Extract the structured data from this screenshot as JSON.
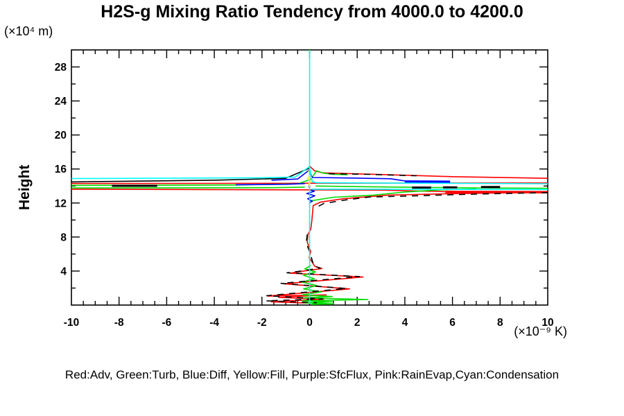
{
  "title": "H2S-g Mixing Ratio Tendency from 4000.0 to 4200.0",
  "y_axis_unit": "(×10⁴ m)",
  "y_axis_label": "Height",
  "x_axis_unit": "(×10⁻⁹ K)",
  "legend_text": "Red:Adv, Green:Turb, Blue:Diff, Yellow:Fill, Purple:SfcFlux, Pink:RainEvap,Cyan:Condensation",
  "chart_data": {
    "type": "line",
    "title": "H2S-g Mixing Ratio Tendency from 4000.0 to 4200.0",
    "ylabel": "Height",
    "y_unit": "(×10⁴ m)",
    "x_unit": "(×10⁻⁹ K)",
    "xlim": [
      -10,
      10
    ],
    "ylim": [
      0,
      30
    ],
    "x_major_ticks": [
      -10,
      -8,
      -6,
      -4,
      -2,
      0,
      2,
      4,
      6,
      8,
      10
    ],
    "x_tick_labels": [
      "-10",
      "-8",
      "-6",
      "-4",
      "-2",
      "0",
      "2",
      "4",
      "6",
      "8",
      "10"
    ],
    "x_minor_step": 0.5,
    "y_major_ticks": [
      4,
      8,
      12,
      16,
      20,
      24,
      28
    ],
    "y_tick_labels": [
      "4",
      "8",
      "12",
      "16",
      "20",
      "24",
      "28"
    ],
    "y_minor_step": 2,
    "grid": false,
    "frame": true,
    "legend_position": "bottom",
    "legend_entries": [
      {
        "label": "Adv",
        "color_name": "Red"
      },
      {
        "label": "Turb",
        "color_name": "Green"
      },
      {
        "label": "Diff",
        "color_name": "Blue"
      },
      {
        "label": "Fill",
        "color_name": "Yellow"
      },
      {
        "label": "SfcFlux",
        "color_name": "Purple"
      },
      {
        "label": "RainEvap",
        "color_name": "Pink"
      },
      {
        "label": "Condensation",
        "color_name": "Cyan"
      }
    ],
    "series": [
      {
        "name": "Adv",
        "color": "#ff0000",
        "width": 1.6,
        "segments": [
          {
            "pts": [
              [
                0,
                16.35
              ],
              [
                0.2,
                15.8
              ],
              [
                0.55,
                15.55
              ],
              [
                3,
                15.35
              ],
              [
                6,
                15.1
              ],
              [
                10,
                14.9
              ]
            ]
          },
          {
            "pts": [
              [
                10,
                14.36
              ],
              [
                -10,
                14.29
              ]
            ]
          },
          {
            "pts": [
              [
                -10,
                13.62
              ],
              [
                3,
                13.52
              ],
              [
                5.7,
                13.34
              ]
            ]
          },
          {
            "pts": [
              [
                5.7,
                13.3
              ],
              [
                10,
                13.27
              ]
            ],
            "w": 3.5
          },
          {
            "pts": [
              [
                10,
                13.24
              ],
              [
                8,
                13.18
              ],
              [
                5.7,
                13.08
              ],
              [
                3.3,
                12.93
              ],
              [
                1.4,
                12.5
              ],
              [
                0.45,
                12.1
              ],
              [
                0.15,
                11.7
              ],
              [
                0.1,
                10.0
              ],
              [
                0.05,
                8.9
              ],
              [
                -0.07,
                8.3
              ],
              [
                -0.1,
                7.4
              ],
              [
                0.05,
                6.3
              ],
              [
                -0.02,
                5.6
              ],
              [
                0.22,
                4.55
              ],
              [
                0.52,
                4.3
              ],
              [
                -0.25,
                4.0
              ],
              [
                -0.83,
                3.75
              ],
              [
                2.25,
                3.3
              ],
              [
                -1.08,
                2.5
              ],
              [
                1.68,
                1.9
              ],
              [
                -1.75,
                1.05
              ],
              [
                0.7,
                1.2
              ],
              [
                -1.3,
                0.9
              ],
              [
                0.6,
                0.7
              ],
              [
                -1.6,
                0.38
              ],
              [
                0.5,
                0.18
              ],
              [
                0.1,
                0.1
              ]
            ]
          }
        ]
      },
      {
        "name": "Turb",
        "color": "#00dd00",
        "width": 1.6,
        "segments": [
          {
            "pts": [
              [
                -10,
                14.07
              ],
              [
                -3,
                14.12
              ],
              [
                -0.5,
                14.25
              ],
              [
                0.05,
                14.8
              ],
              [
                0.3,
                15.78
              ],
              [
                0.6,
                15.5
              ],
              [
                1.0,
                15.38
              ],
              [
                1.6,
                15.32
              ]
            ]
          },
          {
            "pts": [
              [
                -10,
                13.77
              ],
              [
                -1.5,
                13.8
              ],
              [
                -0.2,
                13.87
              ]
            ]
          },
          {
            "pts": [
              [
                0.25,
                14.0
              ],
              [
                2,
                13.92
              ],
              [
                4.5,
                13.84
              ],
              [
                7,
                13.78
              ],
              [
                10,
                13.73
              ]
            ]
          },
          {
            "pts": [
              [
                0.09,
                12.28
              ],
              [
                1.0,
                12.68
              ],
              [
                2.7,
                12.93
              ],
              [
                4.0,
                13.3
              ],
              [
                5.5,
                13.55
              ],
              [
                7,
                13.66
              ]
            ]
          },
          {
            "pts": [
              [
                0.05,
                4.65
              ],
              [
                -0.2,
                4.25
              ],
              [
                0.25,
                3.9
              ],
              [
                -0.25,
                3.5
              ],
              [
                0.2,
                3.1
              ],
              [
                -0.32,
                2.7
              ],
              [
                0.3,
                2.3
              ],
              [
                -0.25,
                1.9
              ],
              [
                0.5,
                1.55
              ],
              [
                -0.3,
                1.2
              ],
              [
                0.95,
                1.0
              ],
              [
                -0.25,
                0.85
              ],
              [
                2.45,
                0.65
              ],
              [
                -0.3,
                0.5
              ],
              [
                0.95,
                0.38
              ],
              [
                -0.2,
                0.25
              ],
              [
                1.0,
                0.15
              ],
              [
                0.1,
                0.07
              ]
            ]
          }
        ]
      },
      {
        "name": "Diff",
        "color": "#0000ff",
        "width": 1.6,
        "segments": [
          {
            "pts": [
              [
                -3.1,
                14.15
              ],
              [
                -1,
                14.2
              ],
              [
                -0.2,
                14.28
              ]
            ]
          },
          {
            "pts": [
              [
                -1.6,
                14.68
              ],
              [
                -0.5,
                14.82
              ],
              [
                0,
                15.9
              ],
              [
                0.08,
                15.2
              ],
              [
                0.12,
                15.0
              ],
              [
                2,
                14.93
              ],
              [
                3.4,
                14.85
              ],
              [
                4.0,
                14.6
              ]
            ]
          },
          {
            "pts": [
              [
                4.0,
                14.5
              ],
              [
                5.9,
                14.47
              ]
            ],
            "w": 4
          },
          {
            "pts": [
              [
                0.05,
                13.52
              ],
              [
                0.2,
                13.38
              ],
              [
                -0.12,
                13.12
              ],
              [
                0.22,
                12.85
              ],
              [
                -0.08,
                12.5
              ],
              [
                0.12,
                12.2
              ],
              [
                0,
                12.05
              ]
            ]
          }
        ]
      },
      {
        "name": "Fill",
        "color": "#ffff00",
        "width": 1.6,
        "segments": [
          {
            "pts": [
              [
                -0.05,
                15.8
              ],
              [
                0.05,
                15.3
              ],
              [
                -0.08,
                14.9
              ],
              [
                0.05,
                14.5
              ],
              [
                -0.05,
                14.2
              ],
              [
                0.03,
                14.05
              ]
            ]
          }
        ]
      },
      {
        "name": "black (no legend entry)",
        "color": "#000000",
        "width": 1.6,
        "segments": [
          {
            "pts": [
              [
                -10,
                14.48
              ],
              [
                -4,
                14.68
              ],
              [
                -1,
                14.9
              ],
              [
                0,
                16.1
              ],
              [
                0.05,
                15.1
              ]
            ]
          },
          {
            "pts": [
              [
                -8.3,
                14.02
              ],
              [
                -6.4,
                14.02
              ]
            ],
            "w": 3
          },
          {
            "pts": [
              [
                0.8,
                15.45
              ],
              [
                2.5,
                15.37
              ],
              [
                4.5,
                15.2
              ]
            ],
            "dash": true
          },
          {
            "pts": [
              [
                10,
                13.22
              ],
              [
                7,
                13.05
              ],
              [
                4.5,
                12.85
              ],
              [
                2.5,
                12.7
              ],
              [
                1.5,
                12.35
              ],
              [
                0.6,
                11.95
              ],
              [
                0.3,
                11.5
              ]
            ],
            "dash": true
          },
          {
            "pts": [
              [
                4.3,
                13.82
              ],
              [
                5.1,
                13.82
              ]
            ],
            "w": 3
          },
          {
            "pts": [
              [
                5.6,
                13.84
              ],
              [
                6.2,
                13.84
              ]
            ],
            "w": 3
          },
          {
            "pts": [
              [
                7.2,
                13.88
              ],
              [
                8.0,
                13.88
              ]
            ],
            "w": 3
          },
          {
            "pts": [
              [
                -0.1,
                8.3
              ],
              [
                -0.14,
                7.3
              ],
              [
                0.0,
                6.3
              ],
              [
                0.18,
                4.6
              ],
              [
                0.45,
                4.35
              ],
              [
                -0.35,
                4.0
              ],
              [
                -0.95,
                3.8
              ],
              [
                2.1,
                3.35
              ],
              [
                -1.2,
                2.55
              ],
              [
                1.55,
                1.95
              ],
              [
                -1.8,
                1.1
              ],
              [
                0.55,
                0.72
              ],
              [
                -1.82,
                0.5
              ],
              [
                0.3,
                0.28
              ]
            ],
            "dash": true
          }
        ]
      },
      {
        "name": "SfcFlux",
        "color": "#a258d4",
        "width": 1.6,
        "segments": [
          {
            "pts": [
              [
                -0.06,
                14.0
              ],
              [
                0.02,
                13.85
              ],
              [
                -0.02,
                13.75
              ]
            ]
          }
        ]
      },
      {
        "name": "Condensation",
        "color": "#00ffff",
        "width": 1.6,
        "segments": [
          {
            "pts": [
              [
                0,
                30
              ],
              [
                0,
                0.15
              ]
            ]
          },
          {
            "pts": [
              [
                -10,
                14.88
              ],
              [
                -2,
                14.97
              ],
              [
                -0.6,
                15.05
              ],
              [
                0,
                16.3
              ],
              [
                0.06,
                15.2
              ],
              [
                0.12,
                14.5
              ],
              [
                0.3,
                14.38
              ],
              [
                10,
                14.27
              ]
            ]
          },
          {
            "pts": [
              [
                0.1,
                13.62
              ],
              [
                10,
                13.58
              ]
            ]
          }
        ]
      },
      {
        "name": "RainEvap",
        "color": "#f7c8e0",
        "width": 1.6,
        "segments": [
          {
            "pts": [
              [
                0.02,
                15.3
              ],
              [
                -0.02,
                14.6
              ],
              [
                0.02,
                13.9
              ]
            ]
          }
        ]
      }
    ]
  }
}
